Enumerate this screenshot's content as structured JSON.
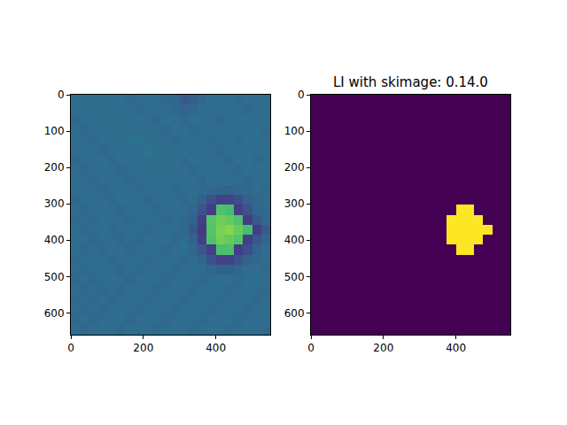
{
  "chart_data": [
    {
      "type": "heatmap",
      "color": "viridis",
      "x": [
        12.5,
        37.5,
        62.5,
        87.5,
        112.5,
        137.5,
        162.5,
        187.5,
        212.5,
        237.5,
        262.5,
        287.5,
        312.5,
        337.5,
        362.5,
        387.5,
        412.5,
        437.5,
        462.5,
        487.5,
        512.5,
        537.5
      ],
      "y": [
        13.75,
        41.25,
        68.75,
        96.25,
        123.75,
        151.25,
        178.75,
        206.25,
        233.75,
        261.25,
        288.75,
        316.25,
        343.75,
        371.25,
        398.75,
        426.25,
        453.75,
        481.25,
        508.75,
        536.25,
        563.75,
        591.25,
        618.75,
        646.25
      ],
      "z": [
        [
          36,
          35,
          37,
          36,
          35,
          36,
          34,
          35,
          36,
          35,
          34,
          33,
          28,
          29,
          33,
          35,
          36,
          35,
          34,
          35,
          36,
          35
        ],
        [
          35,
          36,
          35,
          37,
          36,
          35,
          36,
          34,
          35,
          36,
          35,
          34,
          32,
          33,
          35,
          36,
          35,
          36,
          35,
          34,
          35,
          36
        ],
        [
          34,
          35,
          36,
          35,
          37,
          36,
          35,
          36,
          35,
          34,
          36,
          35,
          34,
          35,
          36,
          35,
          34,
          35,
          36,
          35,
          36,
          35
        ],
        [
          35,
          34,
          35,
          36,
          35,
          37,
          36,
          35,
          36,
          35,
          34,
          36,
          35,
          34,
          35,
          36,
          35,
          36,
          35,
          36,
          35,
          34
        ],
        [
          36,
          35,
          34,
          35,
          36,
          35,
          37,
          38,
          37,
          36,
          35,
          34,
          35,
          36,
          35,
          34,
          36,
          35,
          34,
          35,
          36,
          35
        ],
        [
          35,
          36,
          35,
          34,
          35,
          36,
          35,
          36,
          38,
          37,
          36,
          35,
          36,
          35,
          36,
          35,
          34,
          36,
          35,
          36,
          35,
          36
        ],
        [
          34,
          35,
          36,
          35,
          34,
          35,
          36,
          35,
          36,
          37,
          36,
          35,
          34,
          36,
          35,
          36,
          35,
          34,
          36,
          35,
          34,
          35
        ],
        [
          35,
          34,
          35,
          36,
          35,
          34,
          35,
          36,
          35,
          36,
          35,
          36,
          35,
          34,
          36,
          35,
          36,
          35,
          34,
          36,
          35,
          36
        ],
        [
          36,
          35,
          34,
          35,
          36,
          35,
          34,
          35,
          36,
          35,
          36,
          35,
          36,
          35,
          34,
          36,
          35,
          36,
          35,
          34,
          35,
          36
        ],
        [
          35,
          36,
          35,
          34,
          35,
          36,
          35,
          34,
          35,
          36,
          35,
          34,
          35,
          36,
          35,
          33,
          32,
          31,
          33,
          34,
          35,
          34
        ],
        [
          34,
          35,
          36,
          35,
          34,
          35,
          36,
          35,
          34,
          35,
          36,
          35,
          34,
          35,
          31,
          24,
          20,
          20,
          24,
          31,
          34,
          35
        ],
        [
          35,
          34,
          35,
          36,
          35,
          34,
          35,
          36,
          35,
          34,
          35,
          36,
          35,
          33,
          26,
          18,
          72,
          70,
          18,
          25,
          33,
          34
        ],
        [
          34,
          35,
          34,
          35,
          36,
          35,
          34,
          35,
          36,
          35,
          34,
          35,
          34,
          31,
          18,
          74,
          78,
          76,
          72,
          18,
          28,
          34
        ],
        [
          35,
          34,
          35,
          36,
          34,
          35,
          36,
          35,
          34,
          35,
          36,
          35,
          34,
          27,
          17,
          73,
          80,
          82,
          77,
          70,
          18,
          28
        ],
        [
          36,
          35,
          34,
          35,
          35,
          34,
          35,
          34,
          35,
          36,
          35,
          34,
          35,
          31,
          18,
          72,
          79,
          76,
          73,
          18,
          27,
          33
        ],
        [
          35,
          34,
          35,
          34,
          36,
          35,
          34,
          35,
          36,
          35,
          34,
          35,
          36,
          33,
          27,
          18,
          71,
          72,
          18,
          24,
          32,
          35
        ],
        [
          34,
          35,
          36,
          35,
          34,
          35,
          36,
          35,
          34,
          35,
          36,
          35,
          34,
          35,
          32,
          25,
          19,
          20,
          25,
          31,
          34,
          35
        ],
        [
          35,
          34,
          35,
          36,
          35,
          33,
          35,
          34,
          35,
          36,
          35,
          34,
          35,
          36,
          35,
          33,
          31,
          31,
          33,
          35,
          35,
          34
        ],
        [
          34,
          35,
          34,
          35,
          36,
          35,
          34,
          35,
          36,
          35,
          34,
          35,
          36,
          35,
          34,
          35,
          36,
          35,
          34,
          35,
          36,
          35
        ],
        [
          35,
          34,
          35,
          34,
          35,
          34,
          35,
          36,
          35,
          34,
          35,
          36,
          35,
          34,
          35,
          36,
          35,
          34,
          35,
          36,
          35,
          34
        ],
        [
          34,
          35,
          34,
          35,
          34,
          35,
          36,
          35,
          34,
          35,
          36,
          35,
          34,
          35,
          36,
          35,
          34,
          35,
          36,
          35,
          34,
          35
        ],
        [
          35,
          34,
          35,
          34,
          35,
          36,
          35,
          34,
          35,
          36,
          35,
          34,
          35,
          36,
          35,
          34,
          35,
          36,
          35,
          34,
          35,
          36
        ],
        [
          34,
          35,
          34,
          35,
          36,
          35,
          34,
          35,
          36,
          35,
          34,
          35,
          36,
          35,
          34,
          35,
          36,
          35,
          34,
          35,
          36,
          35
        ],
        [
          35,
          34,
          35,
          36,
          35,
          34,
          35,
          36,
          35,
          34,
          35,
          36,
          35,
          34,
          35,
          36,
          35,
          34,
          35,
          36,
          35,
          34
        ]
      ],
      "zlim": [
        0,
        100
      ],
      "xlim": [
        0,
        550
      ],
      "ylim": [
        660,
        0
      ],
      "xticks": [
        0,
        200,
        400
      ],
      "yticks": [
        0,
        100,
        200,
        300,
        400,
        500,
        600
      ]
    },
    {
      "type": "heatmap",
      "title": "LI with skimage: 0.14.0",
      "color": "viridis",
      "x": [
        12.5,
        37.5,
        62.5,
        87.5,
        112.5,
        137.5,
        162.5,
        187.5,
        212.5,
        237.5,
        262.5,
        287.5,
        312.5,
        337.5,
        362.5,
        387.5,
        412.5,
        437.5,
        462.5,
        487.5,
        512.5,
        537.5
      ],
      "y": [
        13.75,
        41.25,
        68.75,
        96.25,
        123.75,
        151.25,
        178.75,
        206.25,
        233.75,
        261.25,
        288.75,
        316.25,
        343.75,
        371.25,
        398.75,
        426.25,
        453.75,
        481.25,
        508.75,
        536.25,
        563.75,
        591.25,
        618.75,
        646.25
      ],
      "z": [
        [
          0,
          0,
          0,
          0,
          0,
          0,
          0,
          0,
          0,
          0,
          0,
          0,
          0,
          0,
          0,
          0,
          0,
          0,
          0,
          0,
          0,
          0
        ],
        [
          0,
          0,
          0,
          0,
          0,
          0,
          0,
          0,
          0,
          0,
          0,
          0,
          0,
          0,
          0,
          0,
          0,
          0,
          0,
          0,
          0,
          0
        ],
        [
          0,
          0,
          0,
          0,
          0,
          0,
          0,
          0,
          0,
          0,
          0,
          0,
          0,
          0,
          0,
          0,
          0,
          0,
          0,
          0,
          0,
          0
        ],
        [
          0,
          0,
          0,
          0,
          0,
          0,
          0,
          0,
          0,
          0,
          0,
          0,
          0,
          0,
          0,
          0,
          0,
          0,
          0,
          0,
          0,
          0
        ],
        [
          0,
          0,
          0,
          0,
          0,
          0,
          0,
          0,
          0,
          0,
          0,
          0,
          0,
          0,
          0,
          0,
          0,
          0,
          0,
          0,
          0,
          0
        ],
        [
          0,
          0,
          0,
          0,
          0,
          0,
          0,
          0,
          0,
          0,
          0,
          0,
          0,
          0,
          0,
          0,
          0,
          0,
          0,
          0,
          0,
          0
        ],
        [
          0,
          0,
          0,
          0,
          0,
          0,
          0,
          0,
          0,
          0,
          0,
          0,
          0,
          0,
          0,
          0,
          0,
          0,
          0,
          0,
          0,
          0
        ],
        [
          0,
          0,
          0,
          0,
          0,
          0,
          0,
          0,
          0,
          0,
          0,
          0,
          0,
          0,
          0,
          0,
          0,
          0,
          0,
          0,
          0,
          0
        ],
        [
          0,
          0,
          0,
          0,
          0,
          0,
          0,
          0,
          0,
          0,
          0,
          0,
          0,
          0,
          0,
          0,
          0,
          0,
          0,
          0,
          0,
          0
        ],
        [
          0,
          0,
          0,
          0,
          0,
          0,
          0,
          0,
          0,
          0,
          0,
          0,
          0,
          0,
          0,
          0,
          0,
          0,
          0,
          0,
          0,
          0
        ],
        [
          0,
          0,
          0,
          0,
          0,
          0,
          0,
          0,
          0,
          0,
          0,
          0,
          0,
          0,
          0,
          0,
          0,
          0,
          0,
          0,
          0,
          0
        ],
        [
          0,
          0,
          0,
          0,
          0,
          0,
          0,
          0,
          0,
          0,
          0,
          0,
          0,
          0,
          0,
          0,
          1,
          1,
          0,
          0,
          0,
          0
        ],
        [
          0,
          0,
          0,
          0,
          0,
          0,
          0,
          0,
          0,
          0,
          0,
          0,
          0,
          0,
          0,
          1,
          1,
          1,
          1,
          0,
          0,
          0
        ],
        [
          0,
          0,
          0,
          0,
          0,
          0,
          0,
          0,
          0,
          0,
          0,
          0,
          0,
          0,
          0,
          1,
          1,
          1,
          1,
          1,
          0,
          0
        ],
        [
          0,
          0,
          0,
          0,
          0,
          0,
          0,
          0,
          0,
          0,
          0,
          0,
          0,
          0,
          0,
          1,
          1,
          1,
          1,
          0,
          0,
          0
        ],
        [
          0,
          0,
          0,
          0,
          0,
          0,
          0,
          0,
          0,
          0,
          0,
          0,
          0,
          0,
          0,
          0,
          1,
          1,
          0,
          0,
          0,
          0
        ],
        [
          0,
          0,
          0,
          0,
          0,
          0,
          0,
          0,
          0,
          0,
          0,
          0,
          0,
          0,
          0,
          0,
          0,
          0,
          0,
          0,
          0,
          0
        ],
        [
          0,
          0,
          0,
          0,
          0,
          0,
          0,
          0,
          0,
          0,
          0,
          0,
          0,
          0,
          0,
          0,
          0,
          0,
          0,
          0,
          0,
          0
        ],
        [
          0,
          0,
          0,
          0,
          0,
          0,
          0,
          0,
          0,
          0,
          0,
          0,
          0,
          0,
          0,
          0,
          0,
          0,
          0,
          0,
          0,
          0
        ],
        [
          0,
          0,
          0,
          0,
          0,
          0,
          0,
          0,
          0,
          0,
          0,
          0,
          0,
          0,
          0,
          0,
          0,
          0,
          0,
          0,
          0,
          0
        ],
        [
          0,
          0,
          0,
          0,
          0,
          0,
          0,
          0,
          0,
          0,
          0,
          0,
          0,
          0,
          0,
          0,
          0,
          0,
          0,
          0,
          0,
          0
        ],
        [
          0,
          0,
          0,
          0,
          0,
          0,
          0,
          0,
          0,
          0,
          0,
          0,
          0,
          0,
          0,
          0,
          0,
          0,
          0,
          0,
          0,
          0
        ],
        [
          0,
          0,
          0,
          0,
          0,
          0,
          0,
          0,
          0,
          0,
          0,
          0,
          0,
          0,
          0,
          0,
          0,
          0,
          0,
          0,
          0,
          0
        ],
        [
          0,
          0,
          0,
          0,
          0,
          0,
          0,
          0,
          0,
          0,
          0,
          0,
          0,
          0,
          0,
          0,
          0,
          0,
          0,
          0,
          0,
          0
        ]
      ],
      "zlim": [
        0,
        1
      ],
      "xlim": [
        0,
        550
      ],
      "ylim": [
        660,
        0
      ],
      "xticks": [
        0,
        200,
        400
      ],
      "yticks": [
        0,
        100,
        200,
        300,
        400,
        500,
        600
      ]
    }
  ]
}
